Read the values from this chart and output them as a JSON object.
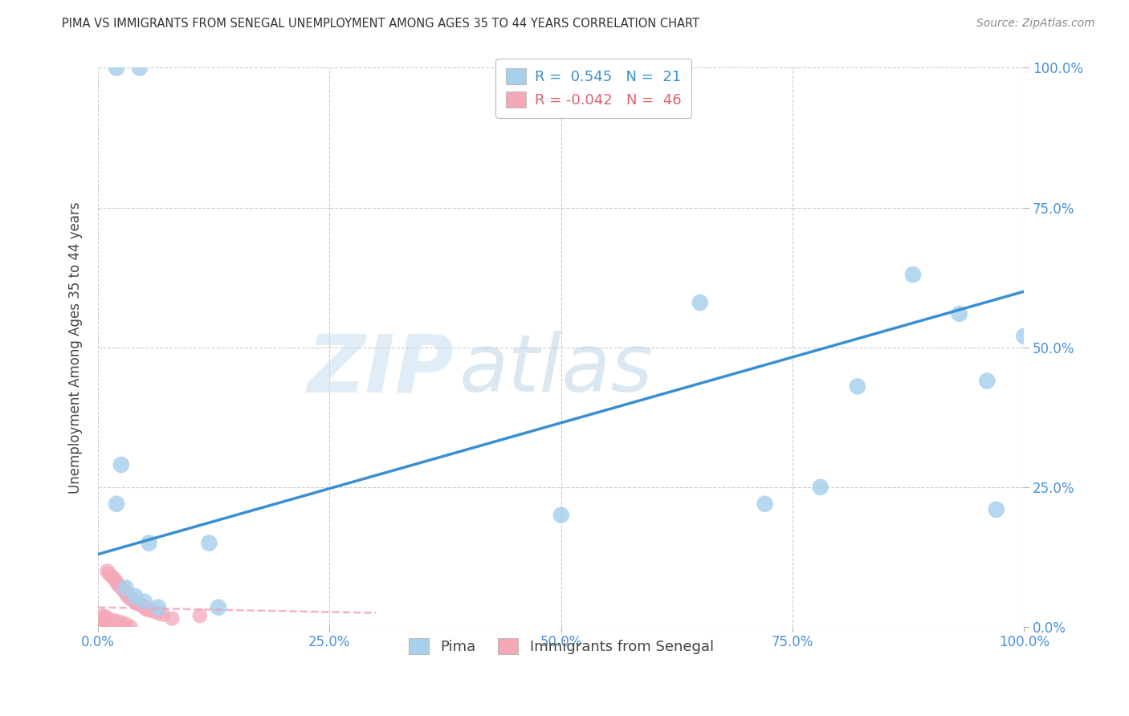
{
  "title": "PIMA VS IMMIGRANTS FROM SENEGAL UNEMPLOYMENT AMONG AGES 35 TO 44 YEARS CORRELATION CHART",
  "source": "Source: ZipAtlas.com",
  "ylabel": "Unemployment Among Ages 35 to 44 years",
  "pima_label": "Pima",
  "senegal_label": "Immigrants from Senegal",
  "pima_R": 0.545,
  "pima_N": 21,
  "senegal_R": -0.042,
  "senegal_N": 46,
  "watermark_zip": "ZIP",
  "watermark_atlas": "atlas",
  "pima_color": "#a8d0ed",
  "senegal_color": "#f4a8b8",
  "pima_line_color": "#3a8fd1",
  "senegal_line_color": "#f0a0b8",
  "background_color": "#ffffff",
  "grid_color": "#cccccc",
  "tick_color": "#4a90d9",
  "pima_points": [
    [
      2.0,
      100.0
    ],
    [
      4.5,
      100.0
    ],
    [
      2.5,
      29.0
    ],
    [
      2.0,
      22.0
    ],
    [
      5.5,
      15.0
    ],
    [
      12.0,
      15.0
    ],
    [
      3.0,
      7.0
    ],
    [
      4.0,
      5.5
    ],
    [
      5.0,
      4.5
    ],
    [
      6.5,
      3.5
    ],
    [
      13.0,
      3.5
    ],
    [
      50.0,
      20.0
    ],
    [
      65.0,
      58.0
    ],
    [
      72.0,
      22.0
    ],
    [
      78.0,
      25.0
    ],
    [
      82.0,
      43.0
    ],
    [
      88.0,
      63.0
    ],
    [
      93.0,
      56.0
    ],
    [
      96.0,
      44.0
    ],
    [
      97.0,
      21.0
    ],
    [
      100.0,
      52.0
    ]
  ],
  "senegal_points": [
    [
      1.0,
      10.0
    ],
    [
      1.2,
      9.5
    ],
    [
      1.5,
      9.0
    ],
    [
      1.8,
      8.5
    ],
    [
      2.0,
      8.0
    ],
    [
      2.2,
      7.5
    ],
    [
      2.5,
      7.0
    ],
    [
      2.8,
      6.5
    ],
    [
      3.0,
      6.0
    ],
    [
      3.2,
      5.5
    ],
    [
      3.5,
      5.0
    ],
    [
      3.8,
      4.8
    ],
    [
      4.0,
      4.5
    ],
    [
      4.2,
      4.2
    ],
    [
      4.5,
      4.0
    ],
    [
      4.8,
      3.8
    ],
    [
      5.0,
      3.5
    ],
    [
      5.2,
      3.2
    ],
    [
      5.5,
      3.0
    ],
    [
      6.0,
      2.8
    ],
    [
      6.5,
      2.5
    ],
    [
      7.0,
      2.2
    ],
    [
      0.5,
      2.0
    ],
    [
      0.8,
      1.8
    ],
    [
      1.0,
      1.5
    ],
    [
      1.5,
      1.2
    ],
    [
      2.0,
      1.0
    ],
    [
      2.5,
      0.8
    ],
    [
      3.0,
      0.5
    ],
    [
      0.3,
      0.5
    ],
    [
      0.5,
      0.3
    ],
    [
      1.0,
      0.2
    ],
    [
      1.2,
      0.1
    ],
    [
      1.5,
      0.1
    ],
    [
      0.2,
      0.0
    ],
    [
      0.4,
      0.0
    ],
    [
      0.6,
      0.0
    ],
    [
      0.8,
      0.0
    ],
    [
      1.0,
      0.0
    ],
    [
      1.3,
      0.0
    ],
    [
      1.8,
      0.0
    ],
    [
      2.2,
      0.0
    ],
    [
      2.8,
      0.0
    ],
    [
      3.5,
      0.0
    ],
    [
      8.0,
      1.5
    ],
    [
      11.0,
      2.0
    ]
  ],
  "pima_trend_x": [
    0,
    100
  ],
  "pima_trend_y": [
    13.0,
    60.0
  ],
  "senegal_trend_x": [
    0,
    30
  ],
  "senegal_trend_y": [
    3.5,
    2.5
  ],
  "xlim": [
    0,
    100
  ],
  "ylim": [
    0,
    100
  ],
  "right_yticks": [
    0,
    25,
    50,
    75,
    100
  ],
  "right_yticklabels": [
    "0.0%",
    "25.0%",
    "50.0%",
    "75.0%",
    "100.0%"
  ],
  "bottom_xticks": [
    0,
    25,
    50,
    75,
    100
  ],
  "bottom_xticklabels": [
    "0.0%",
    "25.0%",
    "50.0%",
    "75.0%",
    "100.0%"
  ]
}
